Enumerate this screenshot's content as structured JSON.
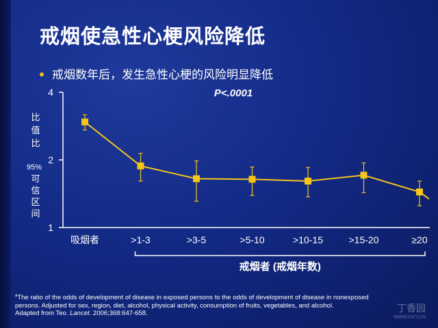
{
  "slide": {
    "title": "戒烟使急性心梗风险降低",
    "bullet": "戒烟数年后，发生急性心梗的风险明显降低"
  },
  "chart_data": {
    "type": "line",
    "annotation": "P<.0001",
    "ylabel_lines": [
      "比",
      "值",
      "比"
    ],
    "ylabel_ci_prefix": "95%",
    "ylabel_ci_lines": [
      "可",
      "信",
      "区",
      "间"
    ],
    "xlabel": "戒烟者 (戒烟年数)",
    "categories": [
      "吸烟者",
      ">1-3",
      ">3-5",
      ">5-10",
      ">10-15",
      ">15-20",
      "≥20"
    ],
    "values": [
      2.95,
      1.88,
      1.65,
      1.64,
      1.61,
      1.71,
      1.44
    ],
    "ci_low": [
      2.72,
      1.61,
      1.31,
      1.39,
      1.37,
      1.43,
      1.25
    ],
    "ci_high": [
      3.18,
      2.14,
      1.98,
      1.86,
      1.85,
      1.94,
      1.61
    ],
    "trend_end_value": 1.34,
    "yticks": [
      1,
      2,
      4
    ],
    "ylim": [
      1,
      4
    ],
    "yscale": "log",
    "colors": {
      "line": "#f5c518",
      "marker": "#f5c518",
      "axis": "#ffffff"
    }
  },
  "footnote": {
    "sup": "a",
    "line1": "The ratio of the odds of development of disease in exposed persons to the odds of development of disease in nonexposed",
    "line2": "persons. Adjusted for sex, region, diet, alcohol, physical activity, consumption of fruits, vegetables, and alcohol.",
    "line3_prefix": "Adapted from Teo. ",
    "line3_journal": "Lancet",
    "line3_suffix": ". 2006;368:647-658."
  },
  "watermark": {
    "brand": "丁香园",
    "url": "WWW.DXY.CN"
  }
}
